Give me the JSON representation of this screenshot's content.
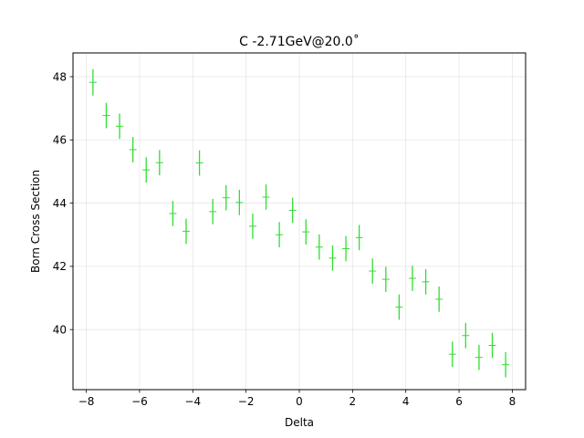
{
  "chart_data": {
    "type": "scatter",
    "title": "C -2.71GeV@20.0˚",
    "xlabel": "Delta",
    "ylabel": "Born Cross Section",
    "xlim": [
      -8.5,
      8.5
    ],
    "ylim": [
      38.1,
      48.75
    ],
    "xticks": [
      -8,
      -6,
      -4,
      -2,
      0,
      2,
      4,
      6,
      8
    ],
    "yticks": [
      40,
      42,
      44,
      46,
      48
    ],
    "grid": true,
    "marker_color": "#33dd33",
    "series": [
      {
        "x": [
          -7.75,
          -7.25,
          -6.75,
          -6.25,
          -5.75,
          -5.25,
          -4.75,
          -4.25,
          -3.75,
          -3.25,
          -2.75,
          -2.25,
          -1.75,
          -1.25,
          -0.75,
          -0.25,
          0.25,
          0.75,
          1.25,
          1.75,
          2.25,
          2.75,
          3.25,
          3.75,
          4.25,
          4.75,
          5.25,
          5.75,
          6.25,
          6.75,
          7.25,
          7.75
        ],
        "y": [
          47.82,
          46.77,
          46.43,
          45.69,
          45.05,
          45.28,
          43.67,
          43.11,
          45.27,
          43.73,
          44.17,
          44.02,
          43.27,
          44.19,
          43.0,
          43.77,
          43.09,
          42.61,
          42.26,
          42.56,
          42.91,
          41.85,
          41.59,
          40.71,
          41.62,
          41.51,
          40.96,
          39.22,
          39.81,
          39.12,
          39.5,
          38.89
        ],
        "yerr": [
          0.42,
          0.4,
          0.4,
          0.4,
          0.4,
          0.4,
          0.4,
          0.4,
          0.4,
          0.4,
          0.4,
          0.4,
          0.4,
          0.4,
          0.4,
          0.4,
          0.4,
          0.4,
          0.4,
          0.4,
          0.4,
          0.4,
          0.4,
          0.4,
          0.4,
          0.4,
          0.4,
          0.4,
          0.4,
          0.4,
          0.4,
          0.4
        ]
      }
    ]
  }
}
